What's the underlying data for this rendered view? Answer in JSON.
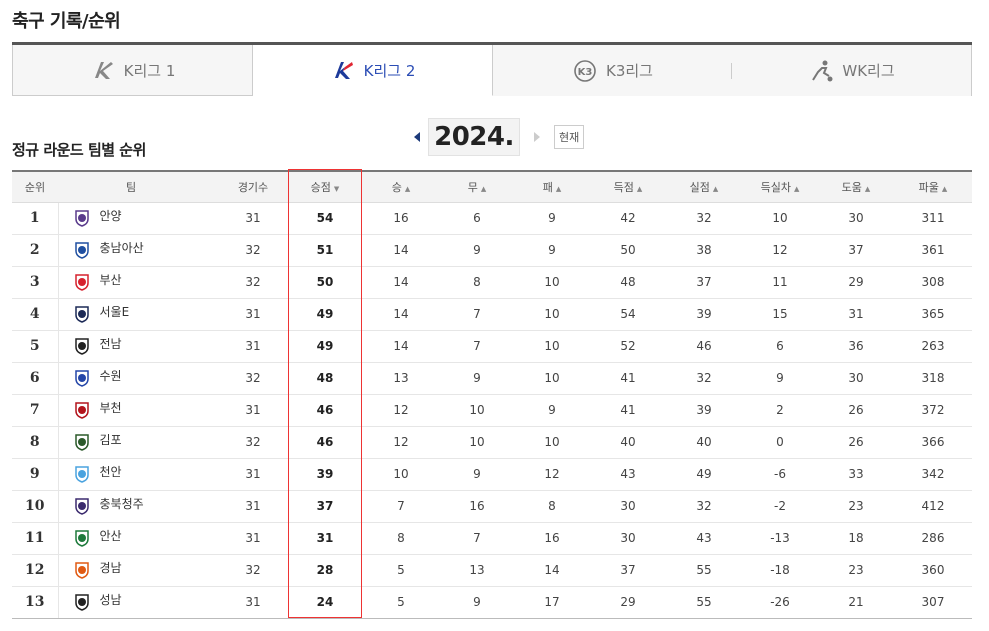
{
  "page_title": "축구 기록/순위",
  "league_tabs": [
    {
      "label": "K리그 1",
      "active": false
    },
    {
      "label": "K리그 2",
      "active": true
    },
    {
      "label": "K3리그",
      "active": false
    },
    {
      "label": "WK리그",
      "active": false
    }
  ],
  "section_title": "정규 라운드 팀별 순위",
  "year_nav": {
    "year": "2024.",
    "current_label": "현재"
  },
  "columns": [
    "순위",
    "팀",
    "경기수",
    "승점",
    "승",
    "무",
    "패",
    "득점",
    "실점",
    "득실차",
    "도움",
    "파울"
  ],
  "colors": {
    "accent": "#2b4db5",
    "highlight_border": "#ee3333"
  },
  "rows": [
    {
      "rank": "1",
      "team": "안양",
      "emblem_color": "#5a3b8c",
      "games": "31",
      "points": "54",
      "win": "16",
      "draw": "6",
      "loss": "9",
      "gf": "42",
      "ga": "32",
      "gd": "10",
      "assists": "30",
      "fouls": "311"
    },
    {
      "rank": "2",
      "team": "충남아산",
      "emblem_color": "#1f4fa0",
      "games": "32",
      "points": "51",
      "win": "14",
      "draw": "9",
      "loss": "9",
      "gf": "50",
      "ga": "38",
      "gd": "12",
      "assists": "37",
      "fouls": "361"
    },
    {
      "rank": "3",
      "team": "부산",
      "emblem_color": "#d6222e",
      "games": "32",
      "points": "50",
      "win": "14",
      "draw": "8",
      "loss": "10",
      "gf": "48",
      "ga": "37",
      "gd": "11",
      "assists": "29",
      "fouls": "308"
    },
    {
      "rank": "4",
      "team": "서울E",
      "emblem_color": "#1c2a57",
      "games": "31",
      "points": "49",
      "win": "14",
      "draw": "7",
      "loss": "10",
      "gf": "54",
      "ga": "39",
      "gd": "15",
      "assists": "31",
      "fouls": "365"
    },
    {
      "rank": "5",
      "team": "전남",
      "emblem_color": "#222222",
      "games": "31",
      "points": "49",
      "win": "14",
      "draw": "7",
      "loss": "10",
      "gf": "52",
      "ga": "46",
      "gd": "6",
      "assists": "36",
      "fouls": "263"
    },
    {
      "rank": "6",
      "team": "수원",
      "emblem_color": "#2446a8",
      "games": "32",
      "points": "48",
      "win": "13",
      "draw": "9",
      "loss": "10",
      "gf": "41",
      "ga": "32",
      "gd": "9",
      "assists": "30",
      "fouls": "318"
    },
    {
      "rank": "7",
      "team": "부천",
      "emblem_color": "#b3141c",
      "games": "31",
      "points": "46",
      "win": "12",
      "draw": "10",
      "loss": "9",
      "gf": "41",
      "ga": "39",
      "gd": "2",
      "assists": "26",
      "fouls": "372"
    },
    {
      "rank": "8",
      "team": "김포",
      "emblem_color": "#2b5a2a",
      "games": "32",
      "points": "46",
      "win": "12",
      "draw": "10",
      "loss": "10",
      "gf": "40",
      "ga": "40",
      "gd": "0",
      "assists": "26",
      "fouls": "366"
    },
    {
      "rank": "9",
      "team": "천안",
      "emblem_color": "#4aa3df",
      "games": "31",
      "points": "39",
      "win": "10",
      "draw": "9",
      "loss": "12",
      "gf": "43",
      "ga": "49",
      "gd": "-6",
      "assists": "33",
      "fouls": "342"
    },
    {
      "rank": "10",
      "team": "충북청주",
      "emblem_color": "#3b2a6e",
      "games": "31",
      "points": "37",
      "win": "7",
      "draw": "16",
      "loss": "8",
      "gf": "30",
      "ga": "32",
      "gd": "-2",
      "assists": "23",
      "fouls": "412"
    },
    {
      "rank": "11",
      "team": "안산",
      "emblem_color": "#1e7a3c",
      "games": "31",
      "points": "31",
      "win": "8",
      "draw": "7",
      "loss": "16",
      "gf": "30",
      "ga": "43",
      "gd": "-13",
      "assists": "18",
      "fouls": "286"
    },
    {
      "rank": "12",
      "team": "경남",
      "emblem_color": "#e05a12",
      "games": "32",
      "points": "28",
      "win": "5",
      "draw": "13",
      "loss": "14",
      "gf": "37",
      "ga": "55",
      "gd": "-18",
      "assists": "23",
      "fouls": "360"
    },
    {
      "rank": "13",
      "team": "성남",
      "emblem_color": "#222222",
      "games": "31",
      "points": "24",
      "win": "5",
      "draw": "9",
      "loss": "17",
      "gf": "29",
      "ga": "55",
      "gd": "-26",
      "assists": "21",
      "fouls": "307"
    }
  ]
}
